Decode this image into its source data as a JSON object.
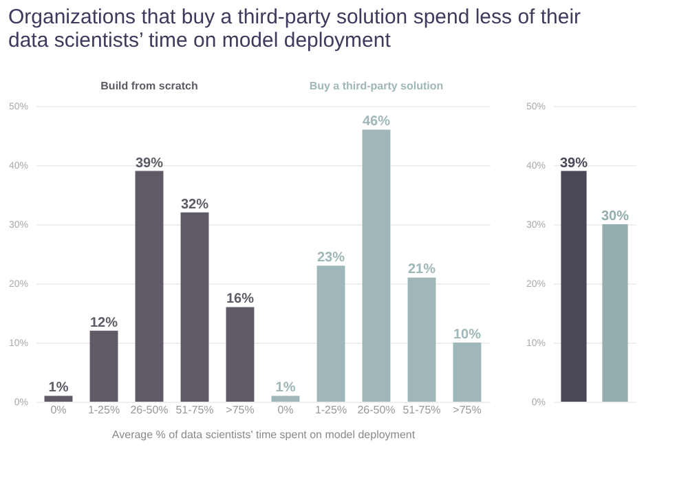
{
  "chart_data": [
    {
      "type": "bar",
      "title": "Organizations that buy a third-party solution spend less of their data scientists’ time on model deployment",
      "xlabel": "Average % of data scientists' time spent on model deployment",
      "categories": [
        "0%",
        "1-25%",
        "26-50%",
        "51-75%",
        ">75%",
        "0%",
        "1-25%",
        "26-50%",
        "51-75%",
        ">75%"
      ],
      "series": [
        {
          "name": "Build from scratch",
          "color": "#5f5a66",
          "values": [
            1,
            12,
            39,
            32,
            16,
            null,
            null,
            null,
            null,
            null
          ],
          "value_labels": [
            "1%",
            "12%",
            "39%",
            "32%",
            "16%",
            null,
            null,
            null,
            null,
            null
          ]
        },
        {
          "name": "Buy a third-party solution",
          "color": "#9fb7b8",
          "values": [
            null,
            null,
            null,
            null,
            null,
            1,
            23,
            46,
            21,
            10
          ],
          "value_labels": [
            null,
            null,
            null,
            null,
            null,
            "1%",
            "23%",
            "46%",
            "21%",
            "10%"
          ]
        }
      ],
      "ylim": [
        0,
        50
      ],
      "yticks": [
        {
          "value": 0,
          "label": "0%"
        },
        {
          "value": 10,
          "label": "10%"
        },
        {
          "value": 20,
          "label": "20%"
        },
        {
          "value": 30,
          "label": "30%"
        },
        {
          "value": 40,
          "label": "40%"
        },
        {
          "value": 50,
          "label": "50%"
        }
      ],
      "grid": "y"
    },
    {
      "type": "bar",
      "categories": [
        null,
        null
      ],
      "values": [
        39,
        30
      ],
      "colors": [
        "#4c4857",
        "#94adae"
      ],
      "value_labels": [
        "39%",
        "30%"
      ],
      "ylim": [
        0,
        50
      ],
      "yticks": [
        {
          "value": 0,
          "label": "0%"
        },
        {
          "value": 10,
          "label": "10%"
        },
        {
          "value": 20,
          "label": "20%"
        },
        {
          "value": 30,
          "label": "30%"
        },
        {
          "value": 40,
          "label": "40%"
        },
        {
          "value": 50,
          "label": "50%"
        }
      ],
      "grid": "y"
    }
  ]
}
